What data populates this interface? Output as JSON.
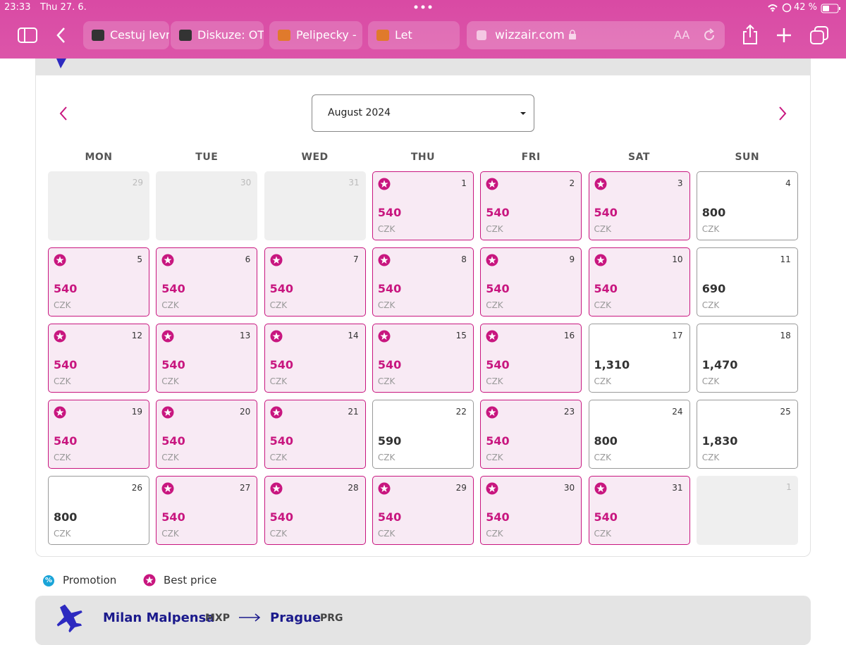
{
  "status_bar": {
    "time": "23:33",
    "date": "Thu 27. 6.",
    "battery": "42 %"
  },
  "tabs": [
    "Cestuj levn",
    "Diskuze: OT",
    "Pelipecky -",
    "Let"
  ],
  "address_bar": {
    "url": "wizzair.com",
    "text_size": "AA"
  },
  "calendar": {
    "month": "August 2024",
    "weekdays": [
      "MON",
      "TUE",
      "WED",
      "THU",
      "FRI",
      "SAT",
      "SUN"
    ],
    "currency": "CZK",
    "days": [
      {
        "day": "29",
        "status": "disabled"
      },
      {
        "day": "30",
        "status": "disabled"
      },
      {
        "day": "31",
        "status": "disabled"
      },
      {
        "day": "1",
        "price": "540",
        "status": "best"
      },
      {
        "day": "2",
        "price": "540",
        "status": "best"
      },
      {
        "day": "3",
        "price": "540",
        "status": "best"
      },
      {
        "day": "4",
        "price": "800",
        "status": "normal"
      },
      {
        "day": "5",
        "price": "540",
        "status": "best"
      },
      {
        "day": "6",
        "price": "540",
        "status": "best"
      },
      {
        "day": "7",
        "price": "540",
        "status": "best"
      },
      {
        "day": "8",
        "price": "540",
        "status": "best"
      },
      {
        "day": "9",
        "price": "540",
        "status": "best"
      },
      {
        "day": "10",
        "price": "540",
        "status": "best"
      },
      {
        "day": "11",
        "price": "690",
        "status": "normal"
      },
      {
        "day": "12",
        "price": "540",
        "status": "best"
      },
      {
        "day": "13",
        "price": "540",
        "status": "best"
      },
      {
        "day": "14",
        "price": "540",
        "status": "best"
      },
      {
        "day": "15",
        "price": "540",
        "status": "best"
      },
      {
        "day": "16",
        "price": "540",
        "status": "best"
      },
      {
        "day": "17",
        "price": "1,310",
        "status": "normal"
      },
      {
        "day": "18",
        "price": "1,470",
        "status": "normal"
      },
      {
        "day": "19",
        "price": "540",
        "status": "best"
      },
      {
        "day": "20",
        "price": "540",
        "status": "best"
      },
      {
        "day": "21",
        "price": "540",
        "status": "best"
      },
      {
        "day": "22",
        "price": "590",
        "status": "normal"
      },
      {
        "day": "23",
        "price": "540",
        "status": "best"
      },
      {
        "day": "24",
        "price": "800",
        "status": "normal"
      },
      {
        "day": "25",
        "price": "1,830",
        "status": "normal"
      },
      {
        "day": "26",
        "price": "800",
        "status": "normal"
      },
      {
        "day": "27",
        "price": "540",
        "status": "best"
      },
      {
        "day": "28",
        "price": "540",
        "status": "best"
      },
      {
        "day": "29",
        "price": "540",
        "status": "best"
      },
      {
        "day": "30",
        "price": "540",
        "status": "best"
      },
      {
        "day": "31",
        "price": "540",
        "status": "best"
      },
      {
        "day": "1",
        "status": "disabled"
      }
    ]
  },
  "legend": {
    "promotion_icon": "%",
    "promotion": "Promotion",
    "best_price": "Best price"
  },
  "flight": {
    "from": "Milan Malpensa",
    "from_code": "MXP",
    "to": "Prague",
    "to_code": "PRG"
  }
}
